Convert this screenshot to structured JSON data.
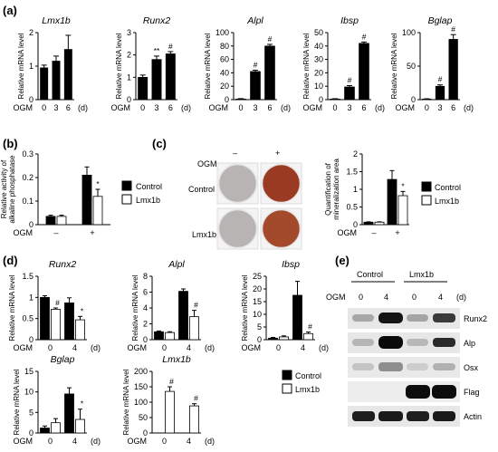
{
  "panel_labels": [
    "(a)",
    "(b)",
    "(c)",
    "(d)",
    "(e)"
  ],
  "common": {
    "ogm": "OGM",
    "d_unit": "(d)",
    "minus": "–",
    "plus": "+",
    "ylabel_mrna": "Relative mRNA level",
    "legend_control": "Control",
    "legend_lmx1b": "Lmx1b",
    "colors": {
      "control": "#000000",
      "lmx1b": "#ffffff",
      "dish_control": "#b8b4b3",
      "dish_ogm": "#9b3a22"
    }
  },
  "panel_c": {
    "row_labels": [
      "Control",
      "Lmx1b"
    ],
    "cond_labels": [
      "–",
      "+"
    ],
    "ogm_label": "OGM"
  },
  "panel_e": {
    "group_labels": [
      "Control",
      "Lmx1b"
    ],
    "ogm_label": "OGM",
    "times": [
      "0",
      "4",
      "0",
      "4"
    ],
    "unit": "(d)",
    "protein_labels": [
      "Runx2",
      "Alp",
      "Osx",
      "Flag",
      "Actin"
    ]
  },
  "chart_data": [
    {
      "panel": "a",
      "type": "bar",
      "title": "Lmx1b",
      "ylabel": "Relative mRNA level",
      "categories": [
        "0",
        "3",
        "6"
      ],
      "values": [
        0.95,
        1.15,
        1.5
      ],
      "errors": [
        0.08,
        0.15,
        0.42
      ],
      "ylim": [
        0,
        2
      ],
      "yticks": [
        0,
        1,
        2
      ],
      "marks": [
        "",
        "",
        ""
      ]
    },
    {
      "panel": "a",
      "type": "bar",
      "title": "Runx2",
      "ylabel": "Relative mRNA level",
      "categories": [
        "0",
        "3",
        "6"
      ],
      "values": [
        1.0,
        1.8,
        2.05
      ],
      "errors": [
        0.1,
        0.15,
        0.1
      ],
      "ylim": [
        0,
        3
      ],
      "yticks": [
        0,
        1,
        2,
        3
      ],
      "marks": [
        "",
        "**",
        "#"
      ]
    },
    {
      "panel": "a",
      "type": "bar",
      "title": "Alpl",
      "ylabel": "Relative mRNA level",
      "categories": [
        "0",
        "3",
        "6"
      ],
      "values": [
        1,
        42,
        80
      ],
      "errors": [
        0.5,
        2,
        2.5
      ],
      "ylim": [
        0,
        100
      ],
      "yticks": [
        0,
        20,
        40,
        60,
        80,
        100
      ],
      "marks": [
        "",
        "#",
        "#"
      ]
    },
    {
      "panel": "a",
      "type": "bar",
      "title": "Ibsp",
      "ylabel": "Relative mRNA level",
      "categories": [
        "0",
        "3",
        "6"
      ],
      "values": [
        0.5,
        9.5,
        42
      ],
      "errors": [
        0.2,
        1,
        1
      ],
      "ylim": [
        0,
        50
      ],
      "yticks": [
        0,
        10,
        20,
        30,
        40,
        50
      ],
      "marks": [
        "",
        "#",
        "#"
      ]
    },
    {
      "panel": "a",
      "type": "bar",
      "title": "Bglap",
      "ylabel": "Relative mRNA level",
      "categories": [
        "0",
        "3",
        "6"
      ],
      "values": [
        1,
        20,
        90
      ],
      "errors": [
        0.3,
        2,
        7
      ],
      "ylim": [
        0,
        100
      ],
      "yticks": [
        0,
        50,
        100
      ],
      "marks": [
        "",
        "#",
        "#"
      ]
    },
    {
      "panel": "b",
      "type": "bar",
      "title": "",
      "ylabel": "Relative activity of alkaline phosphatase",
      "xlabel": "OGM",
      "categories": [
        "–",
        "+"
      ],
      "series": [
        {
          "name": "Control",
          "values": [
            0.035,
            0.21
          ],
          "errors": [
            0.005,
            0.035
          ]
        },
        {
          "name": "Lmx1b",
          "values": [
            0.035,
            0.12
          ],
          "errors": [
            0.005,
            0.03
          ]
        }
      ],
      "ylim": [
        0,
        0.3
      ],
      "yticks": [
        0,
        0.1,
        0.2,
        0.3
      ],
      "marks": [
        "",
        "*"
      ],
      "legend": "right"
    },
    {
      "panel": "c",
      "type": "bar",
      "title": "",
      "ylabel": "Quantification of mineralization area",
      "xlabel": "OGM",
      "categories": [
        "–",
        "+"
      ],
      "series": [
        {
          "name": "Control",
          "values": [
            0.07,
            1.28
          ],
          "errors": [
            0.01,
            0.25
          ]
        },
        {
          "name": "Lmx1b",
          "values": [
            0.07,
            0.82
          ],
          "errors": [
            0.01,
            0.12
          ]
        }
      ],
      "ylim": [
        0,
        2
      ],
      "yticks": [
        0,
        0.5,
        1.0,
        1.5,
        2.0
      ],
      "marks": [
        "",
        "*"
      ],
      "legend": "right"
    },
    {
      "panel": "d",
      "type": "bar",
      "title": "Runx2",
      "ylabel": "Relative mRNA level",
      "categories": [
        "0",
        "4"
      ],
      "series": [
        {
          "name": "Control",
          "values": [
            1.0,
            0.87
          ],
          "errors": [
            0.04,
            0.12
          ]
        },
        {
          "name": "Lmx1b",
          "values": [
            0.72,
            0.47
          ],
          "errors": [
            0.03,
            0.08
          ]
        }
      ],
      "ylim": [
        0,
        1.5
      ],
      "yticks": [
        0,
        0.5,
        1.0,
        1.5
      ],
      "marks": [
        "#",
        "*"
      ]
    },
    {
      "panel": "d",
      "type": "bar",
      "title": "Alpl",
      "ylabel": "Relative mRNA level",
      "categories": [
        "0",
        "4"
      ],
      "series": [
        {
          "name": "Control",
          "values": [
            1.0,
            6.1
          ],
          "errors": [
            0.1,
            0.3
          ]
        },
        {
          "name": "Lmx1b",
          "values": [
            0.9,
            2.9
          ],
          "errors": [
            0.1,
            0.8
          ]
        }
      ],
      "ylim": [
        0,
        8
      ],
      "yticks": [
        0,
        2,
        4,
        6,
        8
      ],
      "marks": [
        "",
        "#"
      ]
    },
    {
      "panel": "d",
      "type": "bar",
      "title": "Ibsp",
      "ylabel": "Relative mRNA level",
      "categories": [
        "0",
        "4"
      ],
      "series": [
        {
          "name": "Control",
          "values": [
            0.6,
            17.5
          ],
          "errors": [
            0.3,
            5.5
          ]
        },
        {
          "name": "Lmx1b",
          "values": [
            1.1,
            2.4
          ],
          "errors": [
            0.4,
            0.6
          ]
        }
      ],
      "ylim": [
        0,
        25
      ],
      "yticks": [
        0,
        5,
        10,
        15,
        20,
        25
      ],
      "marks": [
        "",
        "#"
      ]
    },
    {
      "panel": "d",
      "type": "bar",
      "title": "Bglap",
      "ylabel": "Relative mRNA level",
      "categories": [
        "0",
        "4"
      ],
      "series": [
        {
          "name": "Control",
          "values": [
            1.2,
            9.5
          ],
          "errors": [
            0.5,
            1.5
          ]
        },
        {
          "name": "Lmx1b",
          "values": [
            2.5,
            3.3
          ],
          "errors": [
            1.0,
            2.5
          ]
        }
      ],
      "ylim": [
        0,
        15
      ],
      "yticks": [
        0,
        5,
        10,
        15
      ],
      "marks": [
        "",
        "*"
      ]
    },
    {
      "panel": "d",
      "type": "bar",
      "title": "Lmx1b",
      "ylabel": "Relative mRNA level",
      "categories": [
        "0",
        "4"
      ],
      "series": [
        {
          "name": "Control",
          "values": [
            0,
            0
          ],
          "errors": [
            0,
            0
          ]
        },
        {
          "name": "Lmx1b",
          "values": [
            135,
            88
          ],
          "errors": [
            15,
            7
          ]
        }
      ],
      "ylim": [
        0,
        200
      ],
      "yticks": [
        0,
        50,
        100,
        150,
        200
      ],
      "marks": [
        "#",
        "#"
      ],
      "legend": "right"
    }
  ]
}
